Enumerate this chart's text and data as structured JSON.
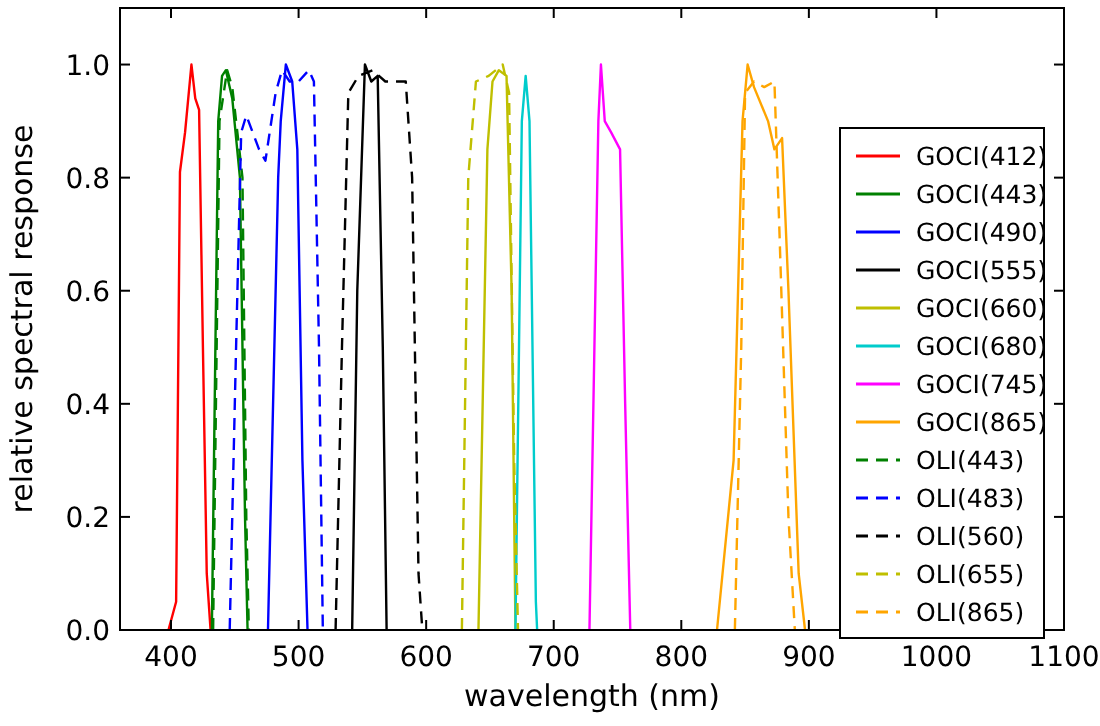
{
  "chart_data": {
    "type": "line",
    "xlabel": "wavelength (nm)",
    "ylabel": "relative spectral response",
    "xlim": [
      360,
      1100
    ],
    "ylim": [
      0,
      1.1
    ],
    "xticks": [
      400,
      500,
      600,
      700,
      800,
      900,
      1000,
      1100
    ],
    "yticks": [
      {
        "value": 0,
        "label": "0.0"
      },
      {
        "value": 0.2,
        "label": "0.2"
      },
      {
        "value": 0.4,
        "label": "0.4"
      },
      {
        "value": 0.6,
        "label": "0.6"
      },
      {
        "value": 0.8,
        "label": "0.8"
      },
      {
        "value": 1,
        "label": "1.0"
      }
    ],
    "grid": false,
    "legend": "right",
    "series": [
      {
        "name": "GOCI(412)",
        "color": "#ff0000",
        "line_style": "solid",
        "x": [
          398,
          404,
          407,
          411,
          416,
          419,
          422,
          425,
          428,
          431
        ],
        "values": [
          0,
          0.05,
          0.81,
          0.88,
          1.0,
          0.94,
          0.92,
          0.5,
          0.1,
          0
        ]
      },
      {
        "name": "GOCI(443)",
        "color": "#008000",
        "line_style": "solid",
        "x": [
          432,
          437,
          440,
          443,
          448,
          454,
          458,
          460
        ],
        "values": [
          0,
          0.9,
          0.98,
          0.99,
          0.94,
          0.8,
          0.2,
          0
        ]
      },
      {
        "name": "GOCI(490)",
        "color": "#0000ff",
        "line_style": "solid",
        "x": [
          476,
          484,
          486,
          490,
          495,
          499,
          503,
          507
        ],
        "values": [
          0,
          0.8,
          0.9,
          1.0,
          0.97,
          0.85,
          0.3,
          0
        ]
      },
      {
        "name": "GOCI(555)",
        "color": "#000000",
        "line_style": "solid",
        "x": [
          542,
          546,
          549,
          552,
          557,
          562,
          566,
          569
        ],
        "values": [
          0,
          0.6,
          0.8,
          1.0,
          0.97,
          0.98,
          0.5,
          0
        ]
      },
      {
        "name": "GOCI(660)",
        "color": "#bfbf00",
        "line_style": "solid",
        "x": [
          641,
          648,
          652,
          657,
          663,
          667,
          670
        ],
        "values": [
          0,
          0.85,
          0.97,
          0.99,
          0.98,
          0.6,
          0
        ]
      },
      {
        "name": "GOCI(680)",
        "color": "#00cccc",
        "line_style": "solid",
        "x": [
          670,
          675,
          678,
          681,
          686,
          687
        ],
        "values": [
          0,
          0.9,
          0.98,
          0.9,
          0.05,
          0
        ]
      },
      {
        "name": "GOCI(745)",
        "color": "#ff00ff",
        "line_style": "solid",
        "x": [
          728,
          735,
          737,
          740,
          745,
          752,
          756,
          760
        ],
        "values": [
          0,
          0.9,
          1.0,
          0.9,
          0.88,
          0.85,
          0.4,
          0
        ]
      },
      {
        "name": "GOCI(865)",
        "color": "#ffa500",
        "line_style": "solid",
        "x": [
          828,
          841,
          848,
          852,
          857,
          868,
          873,
          879,
          884,
          892,
          897
        ],
        "values": [
          0,
          0.3,
          0.9,
          1.0,
          0.96,
          0.9,
          0.85,
          0.87,
          0.6,
          0.1,
          0
        ]
      },
      {
        "name": "OLI(443)",
        "color": "#008000",
        "line_style": "dashed",
        "x": [
          433,
          438,
          444,
          448,
          456,
          459,
          461
        ],
        "values": [
          0,
          0.9,
          0.99,
          0.96,
          0.8,
          0.2,
          0
        ]
      },
      {
        "name": "OLI(483)",
        "color": "#0000ff",
        "line_style": "dashed",
        "x": [
          446,
          451,
          455,
          459,
          464,
          469,
          474,
          482,
          487,
          493,
          500,
          508,
          512,
          516,
          519
        ],
        "values": [
          0,
          0.5,
          0.88,
          0.91,
          0.88,
          0.85,
          0.83,
          0.95,
          0.99,
          0.97,
          0.97,
          0.99,
          0.97,
          0.5,
          0
        ]
      },
      {
        "name": "OLI(560)",
        "color": "#000000",
        "line_style": "dashed",
        "x": [
          529,
          534,
          539,
          547,
          558,
          568,
          584,
          589,
          594,
          597
        ],
        "values": [
          0,
          0.5,
          0.95,
          0.98,
          0.99,
          0.97,
          0.97,
          0.8,
          0.1,
          0
        ]
      },
      {
        "name": "OLI(655)",
        "color": "#bfbf00",
        "line_style": "dashed",
        "x": [
          628,
          633,
          639,
          649,
          660,
          665,
          669,
          672
        ],
        "values": [
          0,
          0.8,
          0.97,
          0.98,
          1.0,
          0.95,
          0.3,
          0
        ]
      },
      {
        "name": "OLI(865)",
        "color": "#ffa500",
        "line_style": "dashed",
        "x": [
          842,
          847,
          850,
          857,
          865,
          873,
          877,
          884,
          889
        ],
        "values": [
          0,
          0.5,
          0.95,
          0.97,
          0.96,
          0.97,
          0.7,
          0.2,
          0
        ]
      }
    ]
  }
}
